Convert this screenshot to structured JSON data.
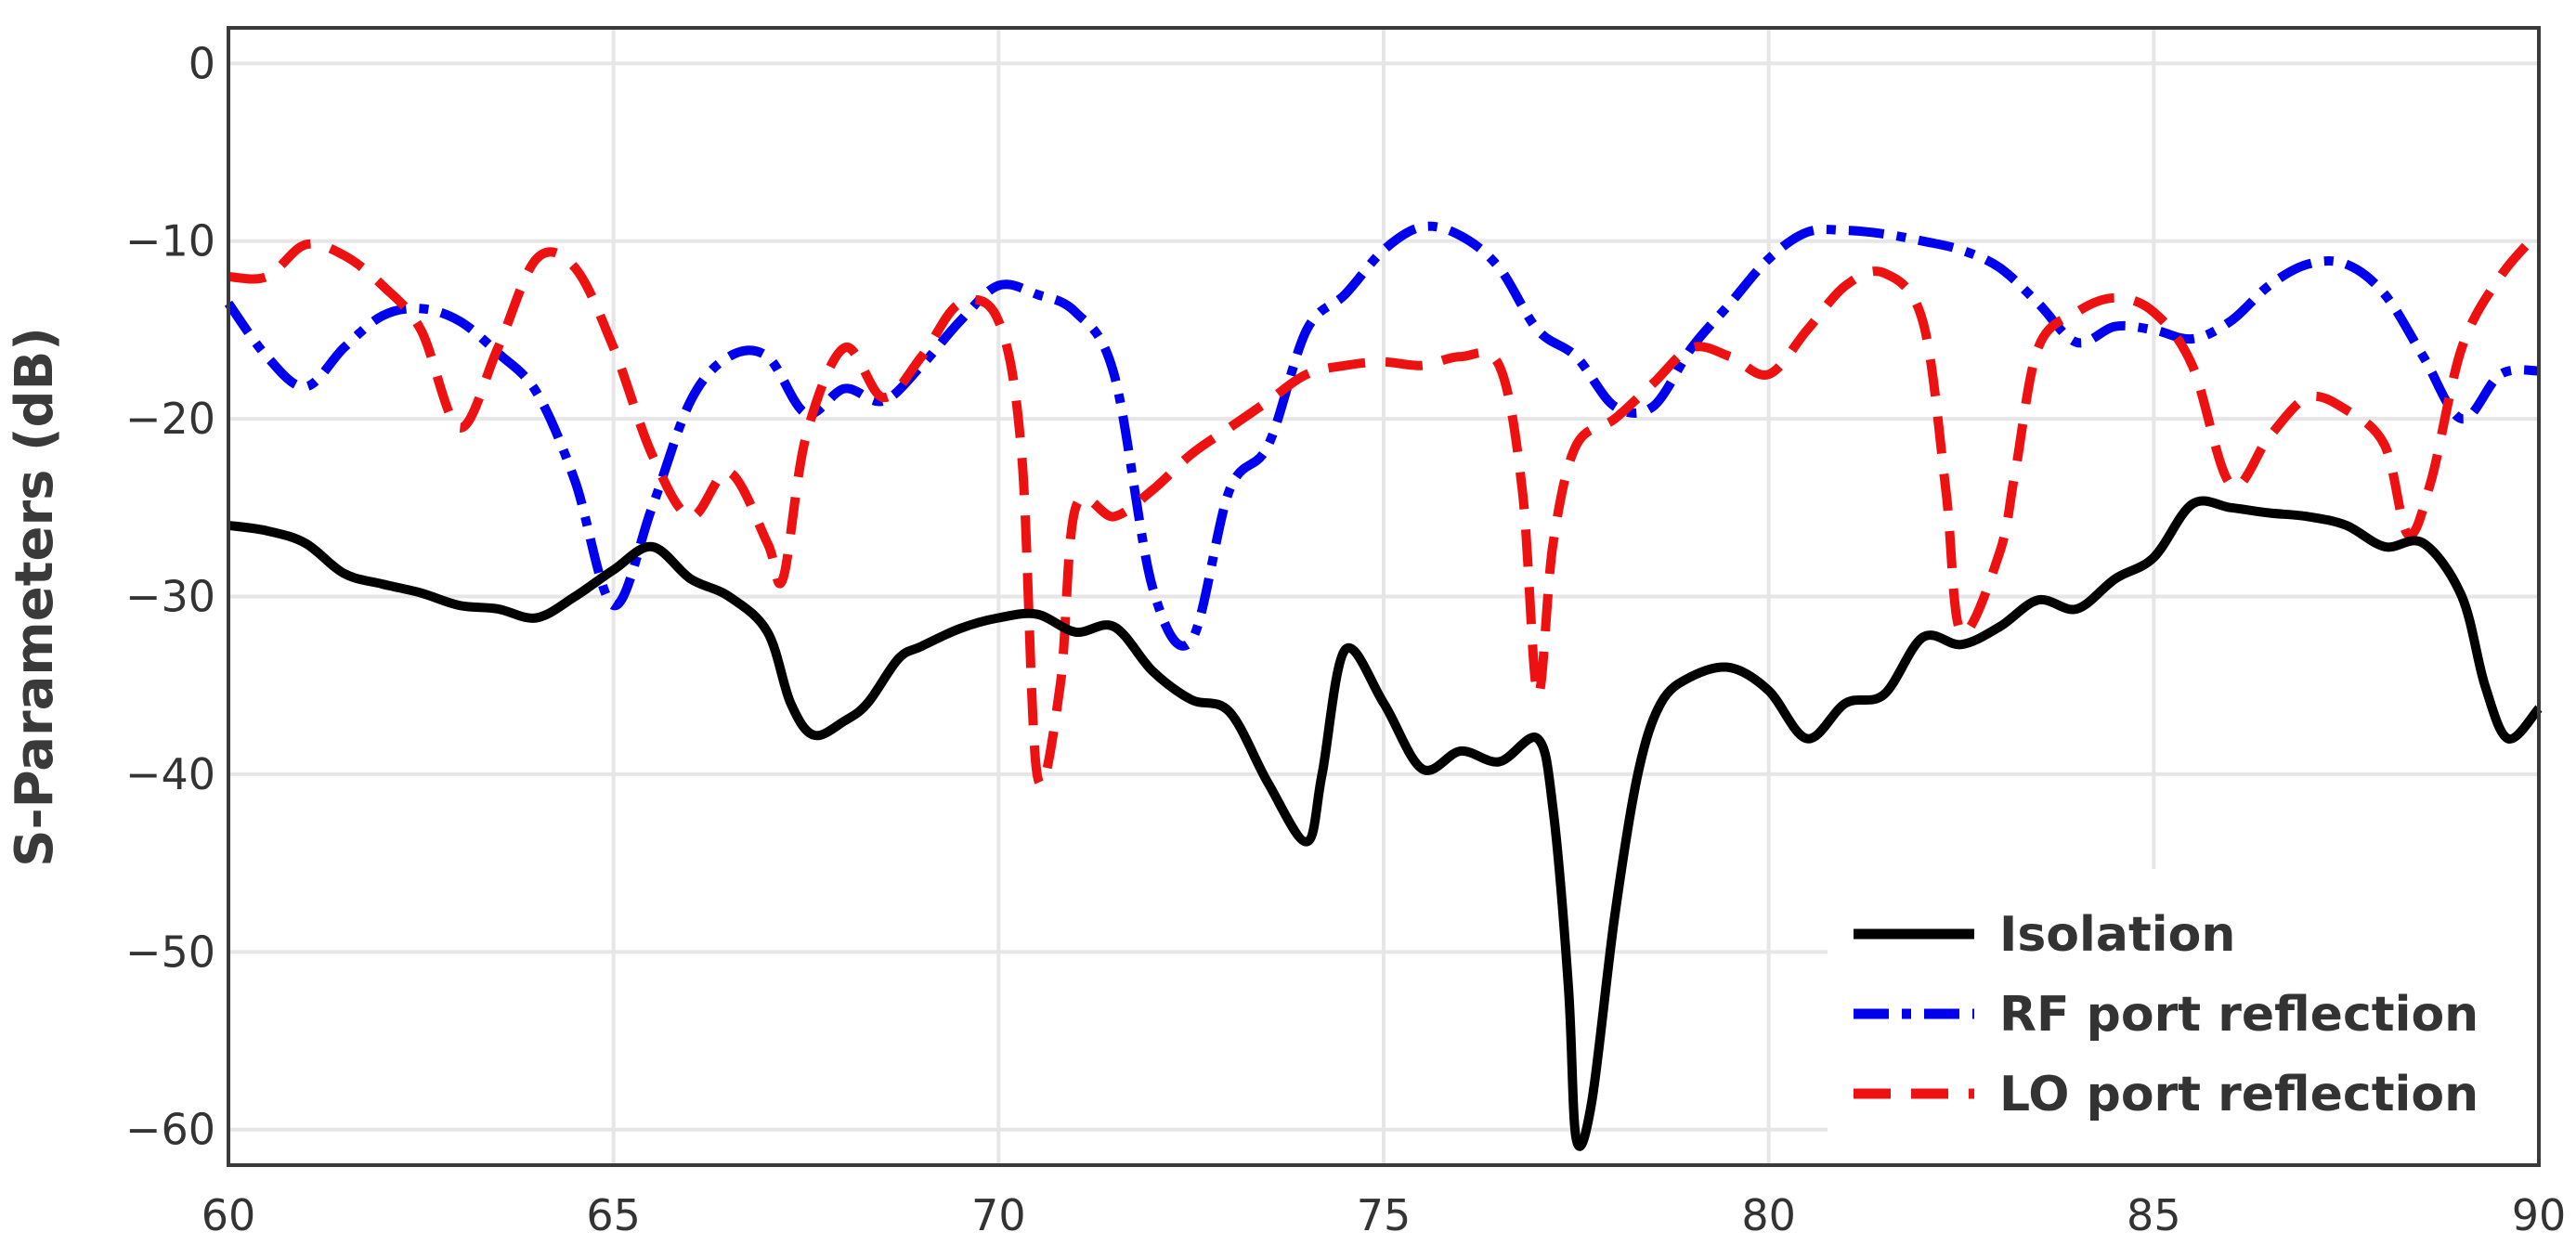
{
  "chart_data": {
    "type": "line",
    "title": "",
    "xlabel": "",
    "ylabel": "S-Parameters (dB)",
    "xlim": [
      60,
      90
    ],
    "ylim": [
      -62,
      2
    ],
    "x_ticks": [
      60,
      65,
      70,
      75,
      80,
      85,
      90
    ],
    "y_ticks": [
      0,
      -10,
      -20,
      -30,
      -40,
      -50,
      -60
    ],
    "x_tick_labels": [
      "60",
      "65",
      "70",
      "75",
      "80",
      "85",
      "90"
    ],
    "y_tick_labels": [
      "0",
      "−10",
      "−20",
      "−30",
      "−40",
      "−50",
      "−60"
    ],
    "grid": true,
    "legend_position": "bottom-right",
    "series": [
      {
        "name": "Isolation",
        "color": "#000000",
        "dash": "solid",
        "points": [
          [
            60,
            -26
          ],
          [
            60.5,
            -26.3
          ],
          [
            61,
            -27
          ],
          [
            61.5,
            -28.7
          ],
          [
            62,
            -29.3
          ],
          [
            62.5,
            -29.8
          ],
          [
            63,
            -30.5
          ],
          [
            63.5,
            -30.7
          ],
          [
            64,
            -31.2
          ],
          [
            64.5,
            -30
          ],
          [
            65,
            -28.5
          ],
          [
            65.5,
            -27.2
          ],
          [
            66,
            -29
          ],
          [
            66.5,
            -30
          ],
          [
            67,
            -32
          ],
          [
            67.3,
            -36
          ],
          [
            67.6,
            -37.8
          ],
          [
            68,
            -37
          ],
          [
            68.3,
            -36
          ],
          [
            68.7,
            -33.5
          ],
          [
            69,
            -32.8
          ],
          [
            69.5,
            -31.8
          ],
          [
            70,
            -31.2
          ],
          [
            70.5,
            -31
          ],
          [
            71,
            -32
          ],
          [
            71.5,
            -31.7
          ],
          [
            72,
            -34.2
          ],
          [
            72.5,
            -35.8
          ],
          [
            73,
            -36.5
          ],
          [
            73.5,
            -40.5
          ],
          [
            74,
            -43.8
          ],
          [
            74.2,
            -40
          ],
          [
            74.5,
            -33
          ],
          [
            75,
            -36
          ],
          [
            75.5,
            -39.7
          ],
          [
            76,
            -38.7
          ],
          [
            76.5,
            -39.3
          ],
          [
            77,
            -38
          ],
          [
            77.2,
            -42
          ],
          [
            77.4,
            -52
          ],
          [
            77.5,
            -60.5
          ],
          [
            77.7,
            -58.5
          ],
          [
            78,
            -48
          ],
          [
            78.3,
            -40
          ],
          [
            78.6,
            -36
          ],
          [
            79,
            -34.5
          ],
          [
            79.5,
            -34
          ],
          [
            80,
            -35.3
          ],
          [
            80.5,
            -38
          ],
          [
            81,
            -36
          ],
          [
            81.5,
            -35.5
          ],
          [
            82,
            -32.3
          ],
          [
            82.5,
            -32.7
          ],
          [
            83,
            -31.7
          ],
          [
            83.5,
            -30.2
          ],
          [
            84,
            -30.7
          ],
          [
            84.5,
            -29
          ],
          [
            85,
            -27.8
          ],
          [
            85.5,
            -24.8
          ],
          [
            86,
            -25
          ],
          [
            86.5,
            -25.3
          ],
          [
            87,
            -25.5
          ],
          [
            87.5,
            -26
          ],
          [
            88,
            -27.2
          ],
          [
            88.5,
            -27
          ],
          [
            89,
            -30
          ],
          [
            89.3,
            -35
          ],
          [
            89.6,
            -38
          ],
          [
            90,
            -36.3
          ]
        ]
      },
      {
        "name": "RF port reflection",
        "color": "#0000ee",
        "dash": "dashdot",
        "points": [
          [
            60,
            -13.5
          ],
          [
            60.5,
            -16.5
          ],
          [
            61,
            -18.2
          ],
          [
            61.5,
            -16
          ],
          [
            62,
            -14.2
          ],
          [
            62.5,
            -13.8
          ],
          [
            63,
            -14.5
          ],
          [
            63.5,
            -16.3
          ],
          [
            64,
            -18.5
          ],
          [
            64.5,
            -23.5
          ],
          [
            65,
            -30.5
          ],
          [
            65.5,
            -25
          ],
          [
            66,
            -19
          ],
          [
            66.5,
            -16.5
          ],
          [
            67,
            -16.5
          ],
          [
            67.5,
            -19.7
          ],
          [
            68,
            -18.3
          ],
          [
            68.5,
            -19
          ],
          [
            69,
            -17
          ],
          [
            69.5,
            -14.5
          ],
          [
            70,
            -12.5
          ],
          [
            70.5,
            -13
          ],
          [
            71,
            -14
          ],
          [
            71.5,
            -17.5
          ],
          [
            72,
            -29.5
          ],
          [
            72.5,
            -32.5
          ],
          [
            73,
            -24
          ],
          [
            73.5,
            -21.5
          ],
          [
            74,
            -15
          ],
          [
            74.5,
            -13
          ],
          [
            75,
            -10.5
          ],
          [
            75.5,
            -9.2
          ],
          [
            76,
            -9.7
          ],
          [
            76.5,
            -11.5
          ],
          [
            77,
            -15
          ],
          [
            77.5,
            -16.5
          ],
          [
            78,
            -19.3
          ],
          [
            78.5,
            -19.3
          ],
          [
            79,
            -16
          ],
          [
            79.5,
            -13.5
          ],
          [
            80,
            -11
          ],
          [
            80.5,
            -9.5
          ],
          [
            81,
            -9.4
          ],
          [
            81.5,
            -9.6
          ],
          [
            82,
            -10
          ],
          [
            82.5,
            -10.5
          ],
          [
            83,
            -11.5
          ],
          [
            83.5,
            -13.5
          ],
          [
            84,
            -15.7
          ],
          [
            84.5,
            -14.8
          ],
          [
            85,
            -15
          ],
          [
            85.5,
            -15.5
          ],
          [
            86,
            -14.5
          ],
          [
            86.5,
            -12.5
          ],
          [
            87,
            -11.3
          ],
          [
            87.5,
            -11.3
          ],
          [
            88,
            -13
          ],
          [
            88.5,
            -16.5
          ],
          [
            89,
            -20
          ],
          [
            89.5,
            -17.5
          ],
          [
            90,
            -17.3
          ]
        ]
      },
      {
        "name": "LO port reflection",
        "color": "#ee1111",
        "dash": "dashed",
        "points": [
          [
            60,
            -12
          ],
          [
            60.5,
            -12
          ],
          [
            61,
            -10.2
          ],
          [
            61.5,
            -10.8
          ],
          [
            62,
            -12.5
          ],
          [
            62.5,
            -15
          ],
          [
            63,
            -20.5
          ],
          [
            63.5,
            -16
          ],
          [
            64,
            -11
          ],
          [
            64.5,
            -11.5
          ],
          [
            65,
            -16
          ],
          [
            65.5,
            -22
          ],
          [
            66,
            -25.5
          ],
          [
            66.5,
            -23
          ],
          [
            67,
            -27
          ],
          [
            67.2,
            -29
          ],
          [
            67.5,
            -21
          ],
          [
            68,
            -16
          ],
          [
            68.5,
            -18.8
          ],
          [
            69,
            -16.5
          ],
          [
            69.5,
            -13.5
          ],
          [
            70,
            -14.5
          ],
          [
            70.3,
            -22
          ],
          [
            70.5,
            -40
          ],
          [
            70.8,
            -35
          ],
          [
            71,
            -25
          ],
          [
            71.5,
            -25.5
          ],
          [
            72,
            -24
          ],
          [
            72.5,
            -22
          ],
          [
            73,
            -20.5
          ],
          [
            73.5,
            -19
          ],
          [
            74,
            -17.5
          ],
          [
            74.5,
            -17
          ],
          [
            75,
            -16.8
          ],
          [
            75.5,
            -17
          ],
          [
            76,
            -16.5
          ],
          [
            76.5,
            -17
          ],
          [
            76.8,
            -24
          ],
          [
            77,
            -35.5
          ],
          [
            77.2,
            -27
          ],
          [
            77.5,
            -21.5
          ],
          [
            78,
            -20
          ],
          [
            78.5,
            -18
          ],
          [
            79,
            -16
          ],
          [
            79.5,
            -16.5
          ],
          [
            80,
            -17.5
          ],
          [
            80.5,
            -15
          ],
          [
            81,
            -12.5
          ],
          [
            81.5,
            -11.8
          ],
          [
            82,
            -14.5
          ],
          [
            82.3,
            -24
          ],
          [
            82.5,
            -32
          ],
          [
            83,
            -27.5
          ],
          [
            83.2,
            -23
          ],
          [
            83.5,
            -16
          ],
          [
            84,
            -14
          ],
          [
            84.5,
            -13.2
          ],
          [
            85,
            -14
          ],
          [
            85.5,
            -17
          ],
          [
            86,
            -23.7
          ],
          [
            86.5,
            -21
          ],
          [
            87,
            -18.8
          ],
          [
            87.5,
            -19.5
          ],
          [
            88,
            -21.5
          ],
          [
            88.3,
            -26.5
          ],
          [
            88.6,
            -23.5
          ],
          [
            89,
            -16
          ],
          [
            89.5,
            -12
          ],
          [
            90,
            -9.5
          ]
        ]
      }
    ]
  }
}
